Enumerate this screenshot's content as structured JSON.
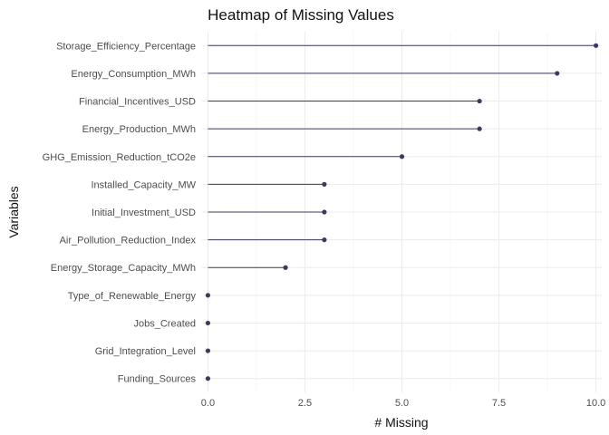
{
  "chart_data": {
    "type": "lollipop",
    "title": "Heatmap of Missing Values",
    "xlabel": "# Missing",
    "ylabel": "Variables",
    "xlim": [
      -0.15,
      10.15
    ],
    "x_ticks": [
      0,
      2.5,
      5,
      7.5,
      10
    ],
    "x_tick_labels": [
      "0.0",
      "2.5",
      "5.0",
      "7.5",
      "10.0"
    ],
    "grid": true,
    "color": "#3c3a5e",
    "categories": [
      "Storage_Efficiency_Percentage",
      "Energy_Consumption_MWh",
      "Financial_Incentives_USD",
      "Energy_Production_MWh",
      "GHG_Emission_Reduction_tCO2e",
      "Installed_Capacity_MW",
      "Initial_Investment_USD",
      "Air_Pollution_Reduction_Index",
      "Energy_Storage_Capacity_MWh",
      "Type_of_Renewable_Energy",
      "Jobs_Created",
      "Grid_Integration_Level",
      "Funding_Sources"
    ],
    "values": [
      10,
      9,
      7,
      7,
      5,
      3,
      3,
      3,
      2,
      0,
      0,
      0,
      0
    ]
  }
}
